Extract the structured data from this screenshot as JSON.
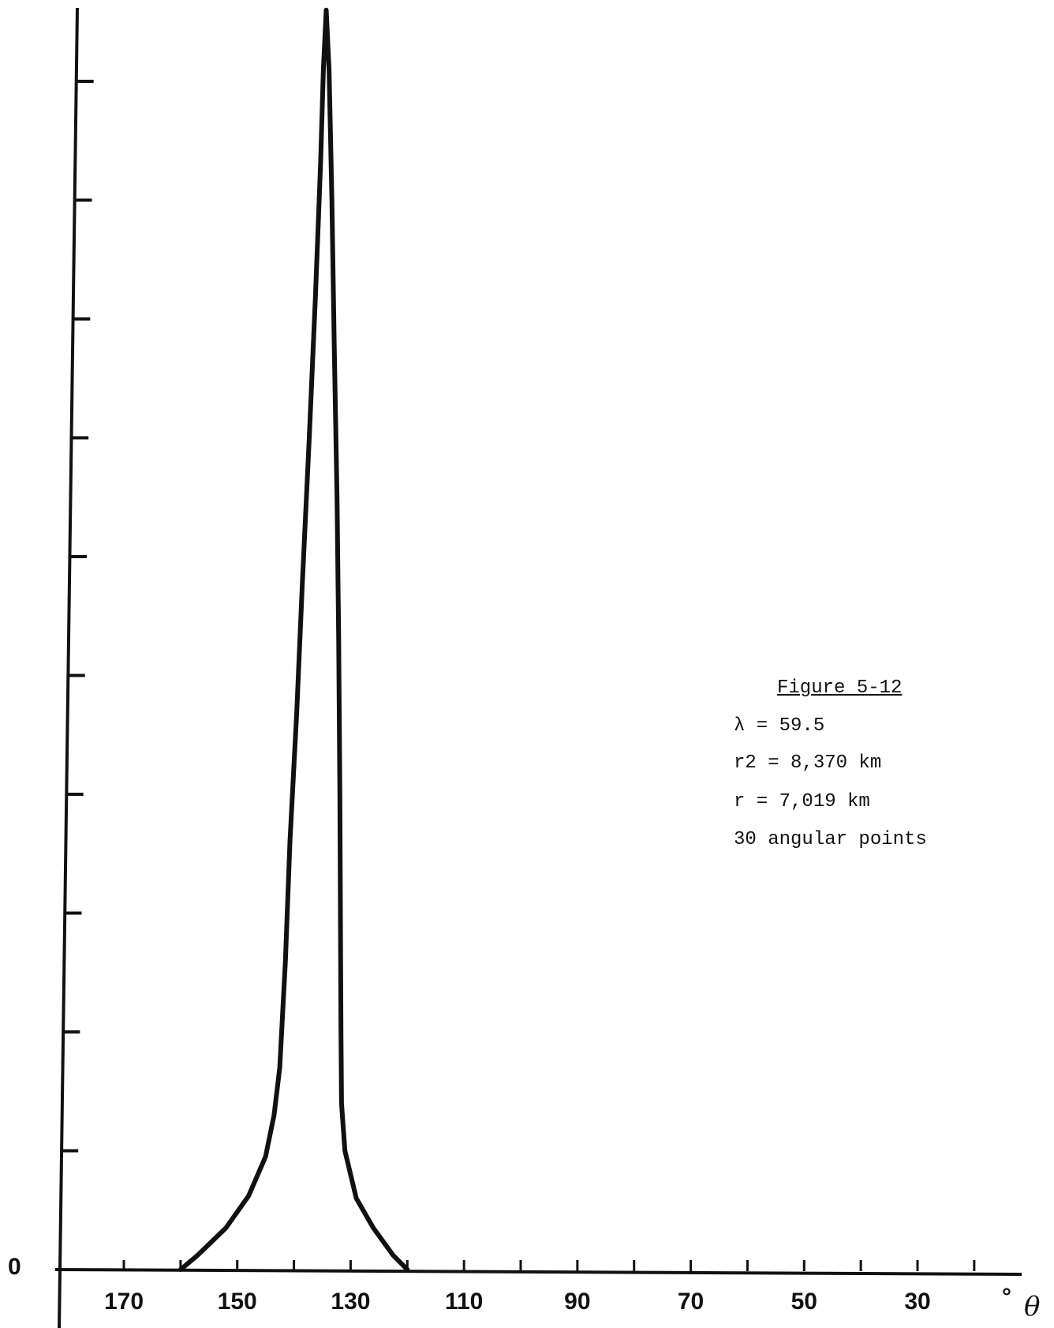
{
  "chart_data": {
    "type": "line",
    "title": "",
    "xlabel": "θ",
    "x_unit": "°",
    "ylabel": "",
    "x_reversed": true,
    "xlim": [
      180,
      10
    ],
    "x_ticks": [
      170,
      150,
      130,
      110,
      90,
      70,
      50,
      30
    ],
    "x_tick_labels": [
      "170",
      "150",
      "130",
      "110",
      "90",
      "70",
      "50",
      "30"
    ],
    "y_zero_label": "0",
    "ylim": [
      0,
      11
    ],
    "y_minor_ticks": [
      1,
      2,
      3,
      4,
      5,
      6,
      7,
      8,
      9,
      10
    ],
    "series": [
      {
        "x": [
          160,
          157,
          152,
          148,
          145,
          143.5,
          142.5,
          141.5,
          140.7,
          139.5,
          138.5,
          137.3,
          136.2,
          135.3,
          134.8,
          134.3,
          133.8,
          133.3,
          132.9,
          132.4,
          132.1,
          131.9,
          131.8,
          131.7,
          131.6,
          131,
          129,
          126,
          122.5,
          120
        ],
        "y": [
          0,
          0.12,
          0.35,
          0.62,
          0.95,
          1.3,
          1.7,
          2.6,
          3.6,
          4.7,
          5.8,
          7.0,
          8.2,
          9.3,
          10.1,
          10.6,
          10.1,
          9.0,
          7.8,
          6.5,
          5.3,
          4.0,
          3.0,
          2.0,
          1.4,
          1.0,
          0.6,
          0.35,
          0.12,
          0
        ]
      }
    ],
    "legend": {
      "title": "Figure 5-12",
      "lines": [
        "λ = 59.5",
        "r2 = 8,370 km",
        "r = 7,019 km",
        "30 angular points"
      ]
    }
  }
}
